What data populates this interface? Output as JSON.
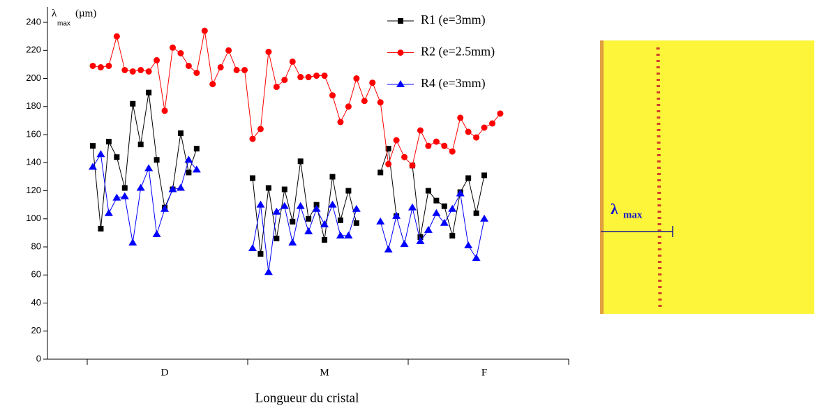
{
  "chart_data": {
    "type": "line",
    "y_label": "λ",
    "y_label_sub": "max",
    "y_label_unit": "(µm)",
    "x_label": "Longueur du cristal",
    "categories": [
      null,
      null,
      null,
      null,
      null,
      null,
      null,
      null,
      null,
      "D",
      null,
      null,
      null,
      null,
      null,
      null,
      null,
      null,
      null,
      null,
      null,
      null,
      null,
      null,
      null,
      null,
      null,
      null,
      null,
      "M",
      null,
      null,
      null,
      null,
      null,
      null,
      null,
      null,
      null,
      null,
      null,
      null,
      null,
      null,
      null,
      null,
      null,
      null,
      null,
      "F",
      null,
      null
    ],
    "ylim": [
      0,
      245
    ],
    "yticks": [
      0,
      20,
      40,
      60,
      80,
      100,
      120,
      140,
      160,
      180,
      200,
      220,
      240
    ],
    "series": [
      {
        "name": "R1 (e=3mm)",
        "color": "#000000",
        "marker": "square",
        "values": [
          152,
          93,
          155,
          144,
          122,
          182,
          153,
          190,
          142,
          108,
          121,
          161,
          133,
          150,
          null,
          null,
          null,
          null,
          null,
          null,
          129,
          75,
          122,
          86,
          121,
          98,
          141,
          100,
          110,
          85,
          130,
          99,
          120,
          97,
          null,
          null,
          133,
          150,
          102,
          null,
          138,
          87,
          120,
          113,
          109,
          88,
          119,
          129,
          104,
          131,
          null,
          null
        ]
      },
      {
        "name": "R2 (e=2.5mm)",
        "color": "#ff0000",
        "marker": "circle",
        "values": [
          209,
          208,
          209,
          230,
          206,
          205,
          206,
          205,
          213,
          177,
          222,
          218,
          209,
          204,
          234,
          196,
          208,
          220,
          206,
          206,
          157,
          164,
          219,
          194,
          199,
          212,
          201,
          201,
          202,
          202,
          188,
          169,
          180,
          200,
          184,
          197,
          183,
          139,
          156,
          144,
          138,
          163,
          152,
          155,
          152,
          148,
          172,
          162,
          158,
          165,
          168,
          175
        ]
      },
      {
        "name": "R4 (e=3mm)",
        "color": "#0000ff",
        "marker": "triangle",
        "values": [
          137,
          146,
          104,
          115,
          116,
          83,
          122,
          136,
          89,
          107,
          121,
          122,
          142,
          135,
          null,
          null,
          null,
          null,
          null,
          null,
          79,
          110,
          62,
          105,
          109,
          83,
          109,
          91,
          107,
          96,
          110,
          88,
          88,
          107,
          null,
          null,
          98,
          78,
          102,
          82,
          108,
          84,
          92,
          104,
          97,
          107,
          118,
          81,
          72,
          100,
          null,
          null
        ]
      }
    ],
    "legend": "top-right",
    "image_label": "λ",
    "image_label_sub": "max"
  }
}
